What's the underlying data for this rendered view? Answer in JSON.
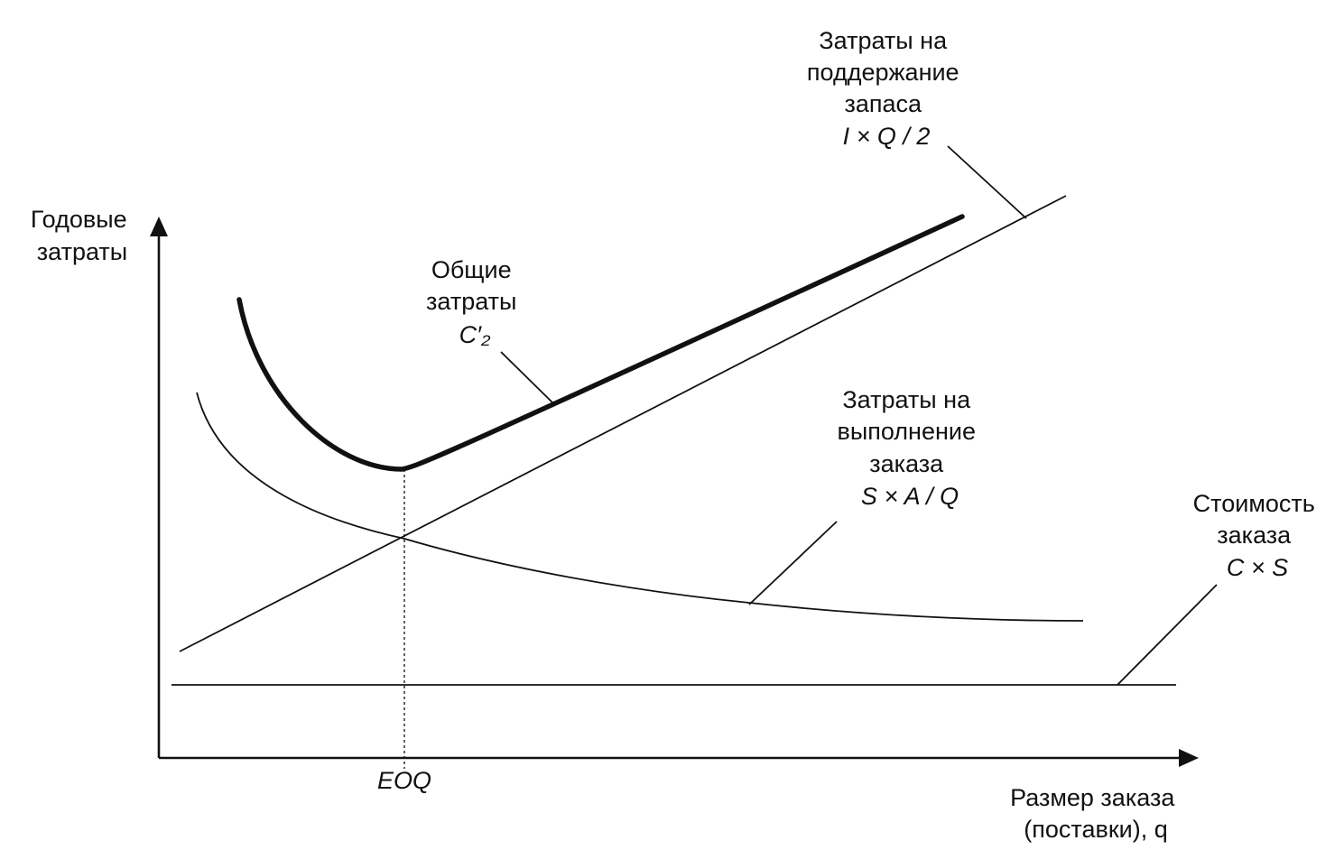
{
  "chart_data": {
    "type": "line",
    "ylabel": [
      "Годовые",
      "затраты"
    ],
    "xlabel": [
      "Размер заказа",
      "(поставки), q"
    ],
    "x_tick": "EOQ",
    "series": [
      {
        "key": "holding",
        "label": [
          "Затраты на",
          "поддержание",
          "запаса",
          "I × Q / 2"
        ]
      },
      {
        "key": "total",
        "label": [
          "Общие",
          "затраты",
          "C′₂"
        ]
      },
      {
        "key": "ordering",
        "label": [
          "Затраты на",
          "выполнение",
          "заказа",
          "S × A / Q"
        ]
      },
      {
        "key": "purchase",
        "label": [
          "Стоимость",
          "заказа",
          "C × S"
        ]
      }
    ],
    "grid": false,
    "legend": "none",
    "annotations": "callout leaders"
  }
}
